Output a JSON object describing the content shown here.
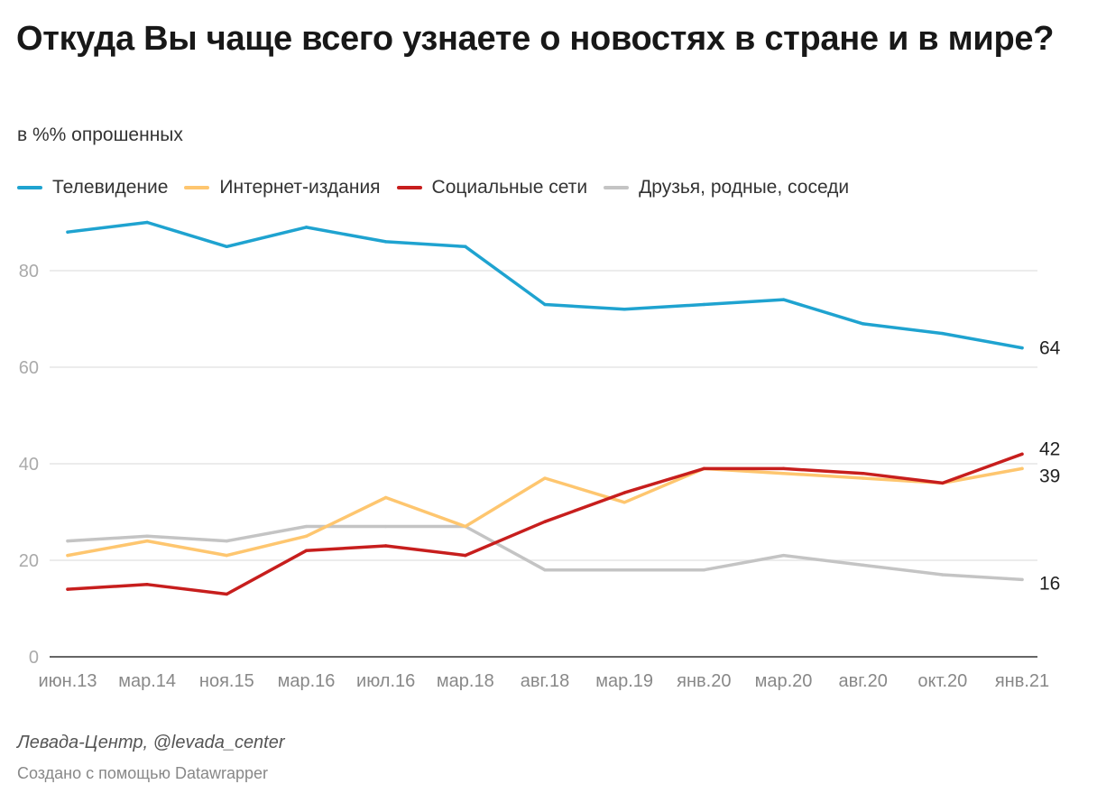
{
  "header": {
    "title": "Откуда Вы чаще всего узнаете о новостях в стране и в мире?",
    "subtitle": "в %% опрошенных"
  },
  "footer": {
    "source": "Левада-Центр, @levada_center",
    "credit": "Создано с помощью Datawrapper"
  },
  "chart_data": {
    "type": "line",
    "title": "Откуда Вы чаще всего узнаете о новостях в стране и в мире?",
    "subtitle": "в %% опрошенных",
    "xlabel": "",
    "ylabel": "",
    "ylim": [
      0,
      90
    ],
    "yticks": [
      0,
      20,
      40,
      60,
      80
    ],
    "grid": true,
    "legend_position": "top-left",
    "categories": [
      "июн.13",
      "мар.14",
      "ноя.15",
      "мар.16",
      "июл.16",
      "мар.18",
      "авг.18",
      "мар.19",
      "янв.20",
      "мар.20",
      "авг.20",
      "окт.20",
      "янв.21"
    ],
    "series": [
      {
        "name": "Телевидение",
        "color": "#1fa3d0",
        "values": [
          88,
          90,
          85,
          89,
          86,
          85,
          73,
          72,
          73,
          74,
          69,
          67,
          64
        ],
        "end_label": "64"
      },
      {
        "name": "Интернет-издания",
        "color": "#fec66f",
        "values": [
          21,
          24,
          21,
          25,
          33,
          27,
          37,
          32,
          39,
          38,
          37,
          36,
          39
        ],
        "end_label": "39"
      },
      {
        "name": "Социальные сети",
        "color": "#c71e1d",
        "values": [
          14,
          15,
          13,
          22,
          23,
          21,
          28,
          34,
          39,
          39,
          38,
          36,
          42
        ],
        "end_label": "42"
      },
      {
        "name": "Друзья, родные, соседи",
        "color": "#c4c4c4",
        "values": [
          24,
          25,
          24,
          27,
          27,
          27,
          18,
          18,
          18,
          21,
          19,
          17,
          16
        ],
        "end_label": "16"
      }
    ]
  }
}
